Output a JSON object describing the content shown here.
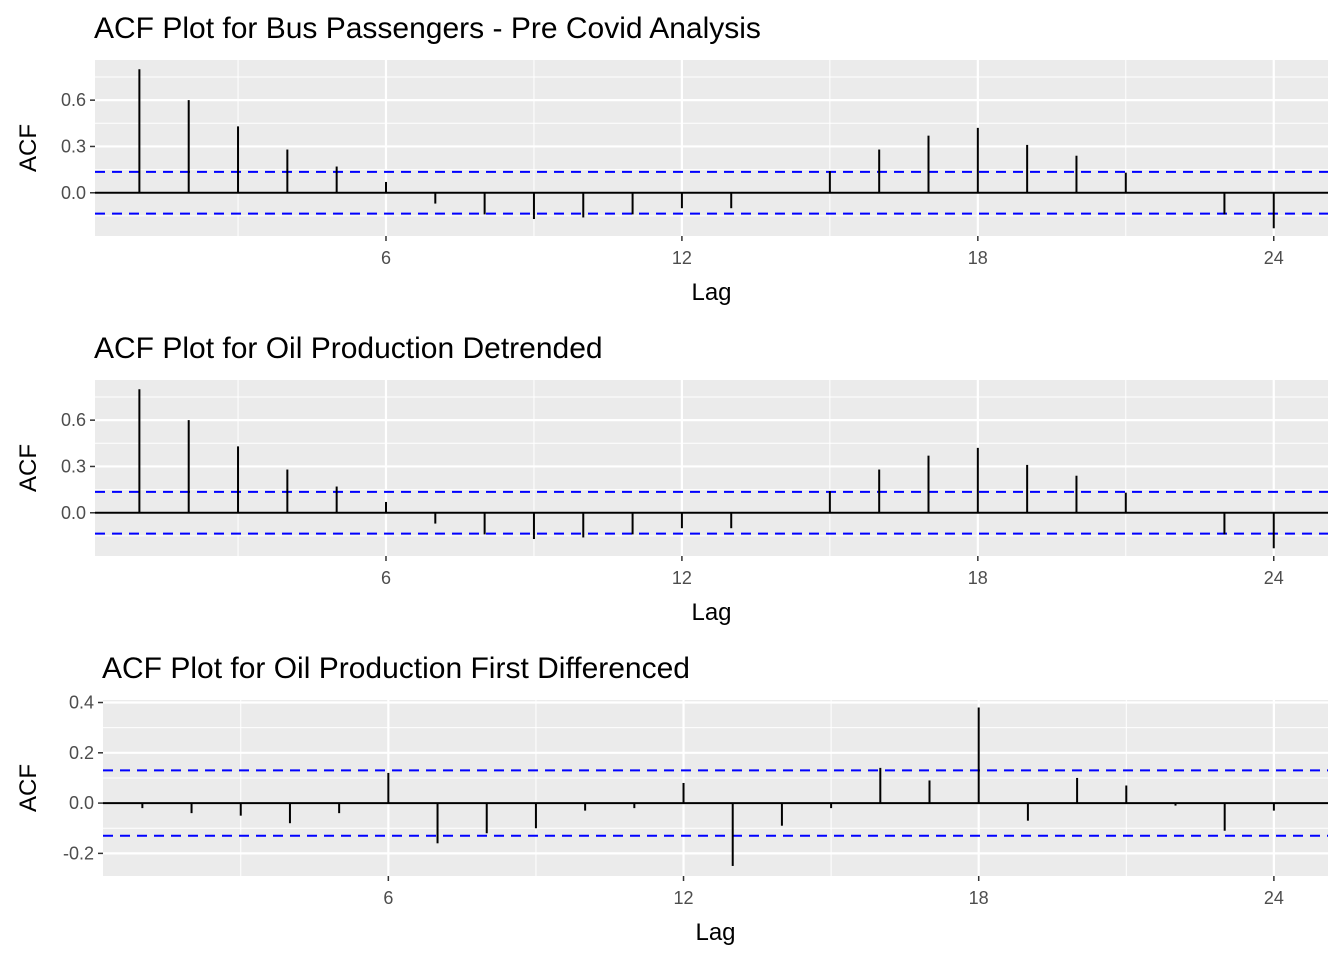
{
  "chart_data": [
    {
      "type": "bar",
      "title": "ACF Plot for Bus Passengers - Pre Covid Analysis",
      "xlabel": "Lag",
      "ylabel": "ACF",
      "x_ticks": [
        6,
        12,
        18,
        24
      ],
      "x_tick_labels": [
        "6",
        "12",
        "18",
        "24"
      ],
      "y_ticks": [
        0.0,
        0.3,
        0.6
      ],
      "y_tick_labels": [
        "0.0",
        "0.3",
        "0.6"
      ],
      "xlim": [
        0.1,
        25.1
      ],
      "ylim": [
        -0.28,
        0.86
      ],
      "grid": true,
      "confidence_bounds": [
        0.135,
        -0.135
      ],
      "bound_color": "#0000ff",
      "panel_color": "#ebebeb",
      "lags": [
        1,
        2,
        3,
        4,
        5,
        6,
        7,
        8,
        9,
        10,
        11,
        12,
        13,
        14,
        15,
        16,
        17,
        18,
        19,
        20,
        21,
        22,
        23,
        24
      ],
      "values": [
        0.8,
        0.6,
        0.43,
        0.28,
        0.17,
        0.07,
        -0.07,
        -0.14,
        -0.17,
        -0.16,
        -0.14,
        -0.1,
        -0.1,
        0.0,
        0.14,
        0.28,
        0.37,
        0.42,
        0.31,
        0.24,
        0.13,
        0.0,
        -0.14,
        -0.23
      ]
    },
    {
      "type": "bar",
      "title": "ACF Plot for Oil Production Detrended",
      "xlabel": "Lag",
      "ylabel": "ACF",
      "x_ticks": [
        6,
        12,
        18,
        24
      ],
      "x_tick_labels": [
        "6",
        "12",
        "18",
        "24"
      ],
      "y_ticks": [
        0.0,
        0.3,
        0.6
      ],
      "y_tick_labels": [
        "0.0",
        "0.3",
        "0.6"
      ],
      "xlim": [
        0.1,
        25.1
      ],
      "ylim": [
        -0.28,
        0.86
      ],
      "grid": true,
      "confidence_bounds": [
        0.135,
        -0.135
      ],
      "bound_color": "#0000ff",
      "panel_color": "#ebebeb",
      "lags": [
        1,
        2,
        3,
        4,
        5,
        6,
        7,
        8,
        9,
        10,
        11,
        12,
        13,
        14,
        15,
        16,
        17,
        18,
        19,
        20,
        21,
        22,
        23,
        24
      ],
      "values": [
        0.8,
        0.6,
        0.43,
        0.28,
        0.17,
        0.07,
        -0.07,
        -0.14,
        -0.17,
        -0.16,
        -0.14,
        -0.1,
        -0.1,
        0.0,
        0.14,
        0.28,
        0.37,
        0.42,
        0.31,
        0.24,
        0.13,
        0.0,
        -0.14,
        -0.23
      ]
    },
    {
      "type": "bar",
      "title": "ACF Plot for Oil Production First Differenced",
      "xlabel": "Lag",
      "ylabel": "ACF",
      "x_ticks": [
        6,
        12,
        18,
        24
      ],
      "x_tick_labels": [
        "6",
        "12",
        "18",
        "24"
      ],
      "y_ticks": [
        -0.2,
        0.0,
        0.2,
        0.4
      ],
      "y_tick_labels": [
        "-0.2",
        "0.0",
        "0.2",
        "0.4"
      ],
      "xlim": [
        0.2,
        25.1
      ],
      "ylim": [
        -0.29,
        0.41
      ],
      "grid": true,
      "confidence_bounds": [
        0.13,
        -0.13
      ],
      "bound_color": "#0000ff",
      "panel_color": "#ebebeb",
      "lags": [
        1,
        2,
        3,
        4,
        5,
        6,
        7,
        8,
        9,
        10,
        11,
        12,
        13,
        14,
        15,
        16,
        17,
        18,
        19,
        20,
        21,
        22,
        23,
        24
      ],
      "values": [
        -0.02,
        -0.04,
        -0.05,
        -0.08,
        -0.04,
        0.12,
        -0.16,
        -0.12,
        -0.1,
        -0.03,
        -0.02,
        0.08,
        -0.25,
        -0.09,
        -0.02,
        0.14,
        0.09,
        0.38,
        -0.07,
        0.1,
        0.07,
        -0.01,
        -0.11,
        -0.03
      ]
    }
  ]
}
